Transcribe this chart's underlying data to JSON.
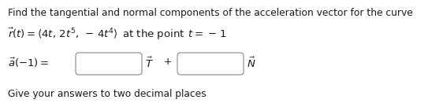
{
  "bg_color": "#ffffff",
  "text_color": "#1a1a1a",
  "line1": "Find the tangential and normal components of the acceleration vector for the curve",
  "line2_plain": " at the point ",
  "line2_math": "$\\vec{r}(t) = \\langle 4t,\\, 2t^5,\\, -\\, 4t^4\\rangle$",
  "line2_t": "$t = -\\,1$",
  "line3_label": "$\\vec{a}(-1) =$",
  "line3_T": "$\\vec{T}$",
  "line3_plus": "+",
  "line3_N": "$\\vec{N}$",
  "line4": "Give your answers to two decimal places",
  "fig_width": 5.62,
  "fig_height": 1.36,
  "dpi": 100,
  "font_size": 8.8,
  "math_size": 9.5
}
